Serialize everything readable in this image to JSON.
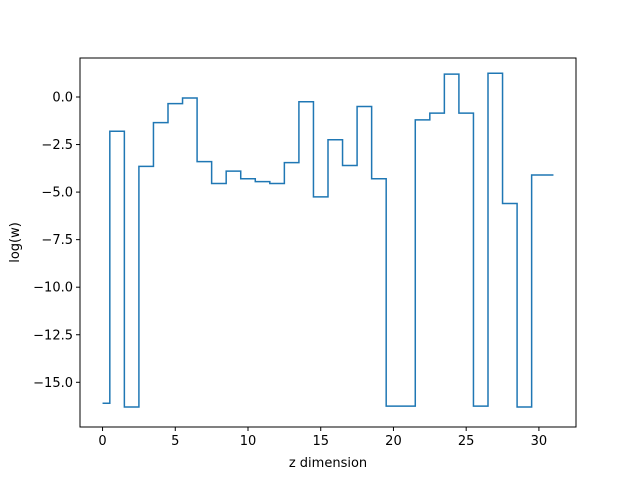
{
  "chart_data": {
    "type": "line",
    "drawstyle": "steps-mid",
    "title": "",
    "xlabel": "z dimension",
    "ylabel": "log(w)",
    "xlim": [
      -1.55,
      32.55
    ],
    "ylim": [
      -17.35,
      2.05
    ],
    "xticks": [
      0,
      5,
      10,
      15,
      20,
      25,
      30
    ],
    "xtick_labels": [
      "0",
      "5",
      "10",
      "15",
      "20",
      "25",
      "30"
    ],
    "yticks": [
      0.0,
      -2.5,
      -5.0,
      -7.5,
      -10.0,
      -12.5,
      -15.0
    ],
    "ytick_labels": [
      "0.0",
      "−2.5",
      "−5.0",
      "−7.5",
      "−10.0",
      "−12.5",
      "−15.0"
    ],
    "grid": false,
    "line_color": "#1f77b4",
    "series": [
      {
        "x": [
          0,
          1,
          2,
          3,
          4,
          5,
          6,
          7,
          8,
          9,
          10,
          11,
          12,
          13,
          14,
          15,
          16,
          17,
          18,
          19,
          20,
          21,
          22,
          23,
          24,
          25,
          26,
          27,
          28,
          29,
          30,
          31
        ],
        "values": [
          -16.1,
          -1.8,
          -16.3,
          -3.65,
          -1.35,
          -0.35,
          -0.05,
          -3.4,
          -4.55,
          -3.9,
          -4.3,
          -4.45,
          -4.55,
          -3.45,
          -0.25,
          -5.25,
          -2.25,
          -3.6,
          -0.5,
          -4.3,
          -16.25,
          -16.25,
          -1.2,
          -0.85,
          1.2,
          -0.85,
          -16.25,
          1.25,
          -5.6,
          -16.3,
          -4.1,
          -4.1
        ]
      }
    ]
  }
}
